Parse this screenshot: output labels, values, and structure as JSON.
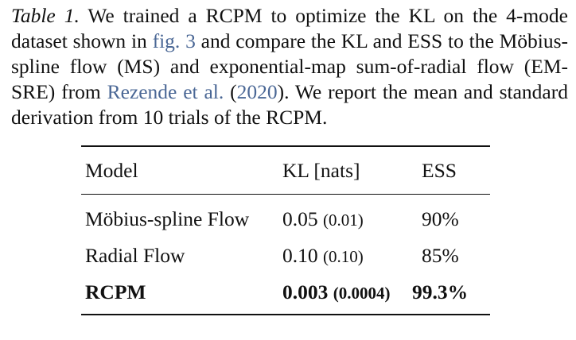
{
  "caption": {
    "label": "Table 1.",
    "text_1": " We trained a RCPM to optimize the KL on the 4-mode dataset shown in ",
    "link_fig": "fig. 3",
    "text_2": " and compare the KL and ESS to the Möbius-spline flow (MS) and exponential-map sum-of-radial flow (EM-SRE) from ",
    "link_cite": "Rezende et al.",
    "text_3": " (",
    "link_year": "2020",
    "text_4": "). We report the mean and standard derivation from 10 trials of the RCPM.",
    "link_color": "#4a6795"
  },
  "table": {
    "headers": [
      "Model",
      "KL [nats]",
      "ESS"
    ],
    "rows": [
      {
        "model": "Möbius-spline Flow",
        "kl": "0.05",
        "kl_std": "(0.01)",
        "ess": "90%",
        "bold": false
      },
      {
        "model": "Radial Flow",
        "kl": "0.10",
        "kl_std": "(0.10)",
        "ess": "85%",
        "bold": false
      },
      {
        "model": "RCPM",
        "kl": "0.003",
        "kl_std": "(0.0004)",
        "ess": "99.3%",
        "bold": true
      }
    ]
  }
}
